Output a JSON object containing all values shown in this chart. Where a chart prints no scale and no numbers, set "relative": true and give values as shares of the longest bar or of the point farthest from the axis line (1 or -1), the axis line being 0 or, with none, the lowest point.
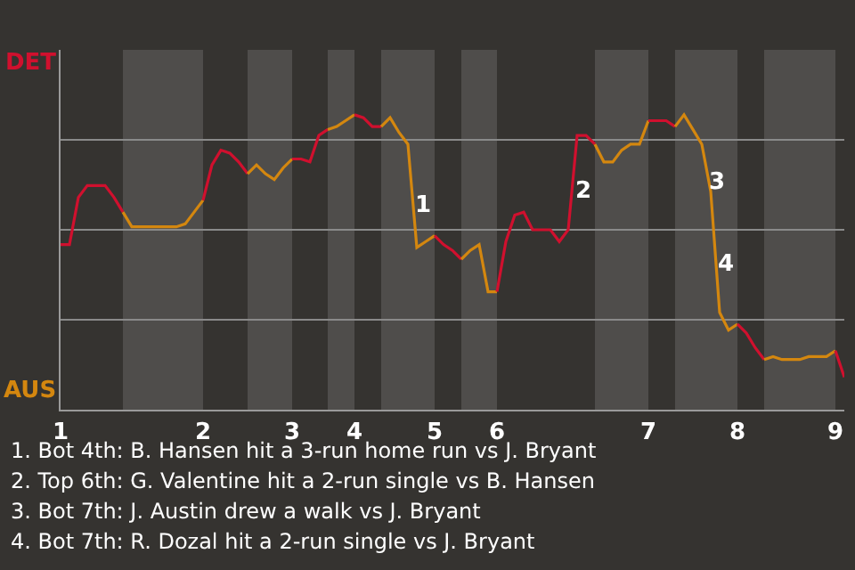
{
  "chart_data": {
    "type": "line",
    "relative": true,
    "categories": [
      "1",
      null,
      null,
      null,
      null,
      null,
      null,
      null,
      null,
      null,
      null,
      null,
      null,
      null,
      null,
      null,
      "2",
      null,
      null,
      null,
      null,
      null,
      null,
      null,
      null,
      null,
      "3",
      null,
      null,
      null,
      null,
      null,
      null,
      "4",
      null,
      null,
      null,
      null,
      null,
      null,
      null,
      null,
      "5",
      null,
      null,
      null,
      null,
      null,
      null,
      "6",
      null,
      null,
      null,
      null,
      null,
      null,
      null,
      null,
      null,
      null,
      null,
      null,
      null,
      null,
      null,
      null,
      "7",
      null,
      null,
      null,
      null,
      null,
      null,
      null,
      null,
      null,
      "8",
      null,
      null,
      null,
      null,
      null,
      null,
      null,
      null,
      null,
      null,
      "9",
      null
    ],
    "grid": "y",
    "marker": "none",
    "line_style": "solid",
    "series": [
      {
        "color": "#d0102e",
        "values": [
          0.56,
          0.56,
          0.72,
          0.76,
          0.76,
          0.76,
          0.72,
          0.67,
          null,
          null,
          null,
          null,
          null,
          null,
          null,
          null,
          null,
          null,
          null,
          null,
          null,
          null,
          null,
          null,
          null,
          null,
          null,
          null,
          null,
          null,
          null,
          null,
          null,
          null,
          null,
          null,
          null,
          null,
          null,
          null,
          null,
          null,
          null,
          null,
          null,
          null,
          null,
          null,
          null,
          null,
          null,
          null,
          null,
          null,
          null,
          null,
          null,
          null,
          null,
          null,
          null,
          null,
          null,
          null,
          null,
          null,
          null,
          null,
          null,
          null,
          null,
          null,
          null,
          null,
          null,
          null,
          null,
          null,
          null,
          null,
          null,
          null,
          null,
          null,
          null,
          null,
          null,
          null,
          null
        ]
      },
      {
        "color": "#d4870f",
        "values": [
          null,
          null,
          null,
          null,
          null,
          null,
          null,
          0.67,
          0.62,
          0.62,
          0.62,
          0.62,
          0.62,
          0.62,
          0.63,
          0.67,
          0.71,
          null,
          null,
          null,
          null,
          null,
          null,
          null,
          null,
          null,
          null,
          null,
          null,
          null,
          null,
          null,
          null,
          null,
          null,
          null,
          null,
          null,
          null,
          null,
          null,
          null,
          null,
          null,
          null,
          null,
          null,
          null,
          null,
          null,
          null,
          null,
          null,
          null,
          null,
          null,
          null,
          null,
          null,
          null,
          null,
          null,
          null,
          null,
          null,
          null,
          null,
          null,
          null,
          null,
          null,
          null,
          null,
          null,
          null,
          null,
          null,
          null,
          null,
          null,
          null,
          null,
          null,
          null,
          null,
          null,
          null,
          null,
          null
        ]
      },
      {
        "color": "#d0102e",
        "values": [
          null,
          null,
          null,
          null,
          null,
          null,
          null,
          null,
          null,
          null,
          null,
          null,
          null,
          null,
          null,
          null,
          0.71,
          0.83,
          0.88,
          0.87,
          0.84,
          0.8,
          null,
          null,
          null,
          null,
          null,
          null,
          null,
          null,
          null,
          null,
          null,
          null,
          null,
          null,
          null,
          null,
          null,
          null,
          null,
          null,
          null,
          null,
          null,
          null,
          null,
          null,
          null,
          null,
          null,
          null,
          null,
          null,
          null,
          null,
          null,
          null,
          null,
          null,
          null,
          null,
          null,
          null,
          null,
          null,
          null,
          null,
          null,
          null,
          null,
          null,
          null,
          null,
          null,
          null,
          null,
          null,
          null,
          null,
          null,
          null,
          null,
          null,
          null,
          null,
          null,
          null,
          null
        ]
      },
      {
        "color": "#d4870f",
        "values": [
          null,
          null,
          null,
          null,
          null,
          null,
          null,
          null,
          null,
          null,
          null,
          null,
          null,
          null,
          null,
          null,
          null,
          null,
          null,
          null,
          null,
          0.8,
          0.83,
          0.8,
          0.78,
          0.82,
          0.85,
          null,
          null,
          null,
          null,
          null,
          null,
          null,
          null,
          null,
          null,
          null,
          null,
          null,
          null,
          null,
          null,
          null,
          null,
          null,
          null,
          null,
          null,
          null,
          null,
          null,
          null,
          null,
          null,
          null,
          null,
          null,
          null,
          null,
          null,
          null,
          null,
          null,
          null,
          null,
          null,
          null,
          null,
          null,
          null,
          null,
          null,
          null,
          null,
          null,
          null,
          null,
          null,
          null,
          null,
          null,
          null,
          null,
          null,
          null,
          null,
          null,
          null
        ]
      },
      {
        "color": "#d0102e",
        "values": [
          null,
          null,
          null,
          null,
          null,
          null,
          null,
          null,
          null,
          null,
          null,
          null,
          null,
          null,
          null,
          null,
          null,
          null,
          null,
          null,
          null,
          null,
          null,
          null,
          null,
          null,
          0.85,
          0.85,
          0.84,
          0.93,
          0.95,
          null,
          null,
          null,
          null,
          null,
          null,
          null,
          null,
          null,
          null,
          null,
          null,
          null,
          null,
          null,
          null,
          null,
          null,
          null,
          null,
          null,
          null,
          null,
          null,
          null,
          null,
          null,
          null,
          null,
          null,
          null,
          null,
          null,
          null,
          null,
          null,
          null,
          null,
          null,
          null,
          null,
          null,
          null,
          null,
          null,
          null,
          null,
          null,
          null,
          null,
          null,
          null,
          null,
          null,
          null,
          null,
          null,
          null
        ]
      },
      {
        "color": "#d4870f",
        "values": [
          null,
          null,
          null,
          null,
          null,
          null,
          null,
          null,
          null,
          null,
          null,
          null,
          null,
          null,
          null,
          null,
          null,
          null,
          null,
          null,
          null,
          null,
          null,
          null,
          null,
          null,
          null,
          null,
          null,
          null,
          0.95,
          0.96,
          0.98,
          1,
          null,
          null,
          null,
          null,
          null,
          null,
          null,
          null,
          null,
          null,
          null,
          null,
          null,
          null,
          null,
          null,
          null,
          null,
          null,
          null,
          null,
          null,
          null,
          null,
          null,
          null,
          null,
          null,
          null,
          null,
          null,
          null,
          null,
          null,
          null,
          null,
          null,
          null,
          null,
          null,
          null,
          null,
          null,
          null,
          null,
          null,
          null,
          null,
          null,
          null,
          null,
          null,
          null,
          null,
          null
        ]
      },
      {
        "color": "#d0102e",
        "values": [
          null,
          null,
          null,
          null,
          null,
          null,
          null,
          null,
          null,
          null,
          null,
          null,
          null,
          null,
          null,
          null,
          null,
          null,
          null,
          null,
          null,
          null,
          null,
          null,
          null,
          null,
          null,
          null,
          null,
          null,
          null,
          null,
          null,
          1,
          0.99,
          0.96,
          0.96,
          null,
          null,
          null,
          null,
          null,
          null,
          null,
          null,
          null,
          null,
          null,
          null,
          null,
          null,
          null,
          null,
          null,
          null,
          null,
          null,
          null,
          null,
          null,
          null,
          null,
          null,
          null,
          null,
          null,
          null,
          null,
          null,
          null,
          null,
          null,
          null,
          null,
          null,
          null,
          null,
          null,
          null,
          null,
          null,
          null,
          null,
          null,
          null,
          null,
          null,
          null,
          null
        ]
      },
      {
        "color": "#d4870f",
        "values": [
          null,
          null,
          null,
          null,
          null,
          null,
          null,
          null,
          null,
          null,
          null,
          null,
          null,
          null,
          null,
          null,
          null,
          null,
          null,
          null,
          null,
          null,
          null,
          null,
          null,
          null,
          null,
          null,
          null,
          null,
          null,
          null,
          null,
          null,
          null,
          null,
          0.96,
          0.99,
          0.94,
          0.9,
          0.55,
          0.57,
          0.59,
          null,
          null,
          null,
          null,
          null,
          null,
          null,
          null,
          null,
          null,
          null,
          null,
          null,
          null,
          null,
          null,
          null,
          null,
          null,
          null,
          null,
          null,
          null,
          null,
          null,
          null,
          null,
          null,
          null,
          null,
          null,
          null,
          null,
          null,
          null,
          null,
          null,
          null,
          null,
          null,
          null,
          null,
          null,
          null,
          null,
          null
        ]
      },
      {
        "color": "#d0102e",
        "values": [
          null,
          null,
          null,
          null,
          null,
          null,
          null,
          null,
          null,
          null,
          null,
          null,
          null,
          null,
          null,
          null,
          null,
          null,
          null,
          null,
          null,
          null,
          null,
          null,
          null,
          null,
          null,
          null,
          null,
          null,
          null,
          null,
          null,
          null,
          null,
          null,
          null,
          null,
          null,
          null,
          null,
          null,
          0.59,
          0.56,
          0.54,
          0.51,
          null,
          null,
          null,
          null,
          null,
          null,
          null,
          null,
          null,
          null,
          null,
          null,
          null,
          null,
          null,
          null,
          null,
          null,
          null,
          null,
          null,
          null,
          null,
          null,
          null,
          null,
          null,
          null,
          null,
          null,
          null,
          null,
          null,
          null,
          null,
          null,
          null,
          null,
          null,
          null,
          null,
          null,
          null
        ]
      },
      {
        "color": "#d4870f",
        "values": [
          null,
          null,
          null,
          null,
          null,
          null,
          null,
          null,
          null,
          null,
          null,
          null,
          null,
          null,
          null,
          null,
          null,
          null,
          null,
          null,
          null,
          null,
          null,
          null,
          null,
          null,
          null,
          null,
          null,
          null,
          null,
          null,
          null,
          null,
          null,
          null,
          null,
          null,
          null,
          null,
          null,
          null,
          null,
          null,
          null,
          0.51,
          0.54,
          0.56,
          0.4,
          0.4,
          null,
          null,
          null,
          null,
          null,
          null,
          null,
          null,
          null,
          null,
          null,
          null,
          null,
          null,
          null,
          null,
          null,
          null,
          null,
          null,
          null,
          null,
          null,
          null,
          null,
          null,
          null,
          null,
          null,
          null,
          null,
          null,
          null,
          null,
          null,
          null,
          null,
          null,
          null
        ]
      },
      {
        "color": "#d0102e",
        "values": [
          null,
          null,
          null,
          null,
          null,
          null,
          null,
          null,
          null,
          null,
          null,
          null,
          null,
          null,
          null,
          null,
          null,
          null,
          null,
          null,
          null,
          null,
          null,
          null,
          null,
          null,
          null,
          null,
          null,
          null,
          null,
          null,
          null,
          null,
          null,
          null,
          null,
          null,
          null,
          null,
          null,
          null,
          null,
          null,
          null,
          null,
          null,
          null,
          null,
          0.4,
          0.57,
          0.66,
          0.67,
          0.61,
          0.61,
          0.61,
          0.57,
          0.61,
          0.93,
          0.93,
          0.9,
          null,
          null,
          null,
          null,
          null,
          null,
          null,
          null,
          null,
          null,
          null,
          null,
          null,
          null,
          null,
          null,
          null,
          null,
          null,
          null,
          null,
          null,
          null,
          null,
          null,
          null,
          null,
          null
        ]
      },
      {
        "color": "#d4870f",
        "values": [
          null,
          null,
          null,
          null,
          null,
          null,
          null,
          null,
          null,
          null,
          null,
          null,
          null,
          null,
          null,
          null,
          null,
          null,
          null,
          null,
          null,
          null,
          null,
          null,
          null,
          null,
          null,
          null,
          null,
          null,
          null,
          null,
          null,
          null,
          null,
          null,
          null,
          null,
          null,
          null,
          null,
          null,
          null,
          null,
          null,
          null,
          null,
          null,
          null,
          null,
          null,
          null,
          null,
          null,
          null,
          null,
          null,
          null,
          null,
          null,
          0.9,
          0.84,
          0.84,
          0.88,
          0.9,
          0.9,
          0.98,
          null,
          null,
          null,
          null,
          null,
          null,
          null,
          null,
          null,
          null,
          null,
          null,
          null,
          null,
          null,
          null,
          null,
          null,
          null,
          null,
          null,
          null
        ]
      },
      {
        "color": "#d0102e",
        "values": [
          null,
          null,
          null,
          null,
          null,
          null,
          null,
          null,
          null,
          null,
          null,
          null,
          null,
          null,
          null,
          null,
          null,
          null,
          null,
          null,
          null,
          null,
          null,
          null,
          null,
          null,
          null,
          null,
          null,
          null,
          null,
          null,
          null,
          null,
          null,
          null,
          null,
          null,
          null,
          null,
          null,
          null,
          null,
          null,
          null,
          null,
          null,
          null,
          null,
          null,
          null,
          null,
          null,
          null,
          null,
          null,
          null,
          null,
          null,
          null,
          null,
          null,
          null,
          null,
          null,
          null,
          0.98,
          0.98,
          0.98,
          0.96,
          null,
          null,
          null,
          null,
          null,
          null,
          null,
          null,
          null,
          null,
          null,
          null,
          null,
          null,
          null,
          null,
          null,
          null,
          null
        ]
      },
      {
        "color": "#d4870f",
        "values": [
          null,
          null,
          null,
          null,
          null,
          null,
          null,
          null,
          null,
          null,
          null,
          null,
          null,
          null,
          null,
          null,
          null,
          null,
          null,
          null,
          null,
          null,
          null,
          null,
          null,
          null,
          null,
          null,
          null,
          null,
          null,
          null,
          null,
          null,
          null,
          null,
          null,
          null,
          null,
          null,
          null,
          null,
          null,
          null,
          null,
          null,
          null,
          null,
          null,
          null,
          null,
          null,
          null,
          null,
          null,
          null,
          null,
          null,
          null,
          null,
          null,
          null,
          null,
          null,
          null,
          null,
          null,
          null,
          null,
          0.96,
          1,
          0.95,
          0.9,
          0.74,
          0.33,
          0.27,
          0.29,
          null,
          null,
          null,
          null,
          null,
          null,
          null,
          null,
          null,
          null,
          null,
          null
        ]
      },
      {
        "color": "#d0102e",
        "values": [
          null,
          null,
          null,
          null,
          null,
          null,
          null,
          null,
          null,
          null,
          null,
          null,
          null,
          null,
          null,
          null,
          null,
          null,
          null,
          null,
          null,
          null,
          null,
          null,
          null,
          null,
          null,
          null,
          null,
          null,
          null,
          null,
          null,
          null,
          null,
          null,
          null,
          null,
          null,
          null,
          null,
          null,
          null,
          null,
          null,
          null,
          null,
          null,
          null,
          null,
          null,
          null,
          null,
          null,
          null,
          null,
          null,
          null,
          null,
          null,
          null,
          null,
          null,
          null,
          null,
          null,
          null,
          null,
          null,
          null,
          null,
          null,
          null,
          null,
          null,
          null,
          0.29,
          0.26,
          0.21,
          0.17,
          null,
          null,
          null,
          null,
          null,
          null,
          null,
          null,
          null
        ]
      },
      {
        "color": "#d4870f",
        "values": [
          null,
          null,
          null,
          null,
          null,
          null,
          null,
          null,
          null,
          null,
          null,
          null,
          null,
          null,
          null,
          null,
          null,
          null,
          null,
          null,
          null,
          null,
          null,
          null,
          null,
          null,
          null,
          null,
          null,
          null,
          null,
          null,
          null,
          null,
          null,
          null,
          null,
          null,
          null,
          null,
          null,
          null,
          null,
          null,
          null,
          null,
          null,
          null,
          null,
          null,
          null,
          null,
          null,
          null,
          null,
          null,
          null,
          null,
          null,
          null,
          null,
          null,
          null,
          null,
          null,
          null,
          null,
          null,
          null,
          null,
          null,
          null,
          null,
          null,
          null,
          null,
          null,
          null,
          null,
          0.17,
          0.18,
          0.17,
          0.17,
          0.17,
          0.18,
          0.18,
          0.18,
          0.2,
          null
        ]
      },
      {
        "color": "#d0102e",
        "values": [
          null,
          null,
          null,
          null,
          null,
          null,
          null,
          null,
          null,
          null,
          null,
          null,
          null,
          null,
          null,
          null,
          null,
          null,
          null,
          null,
          null,
          null,
          null,
          null,
          null,
          null,
          null,
          null,
          null,
          null,
          null,
          null,
          null,
          null,
          null,
          null,
          null,
          null,
          null,
          null,
          null,
          null,
          null,
          null,
          null,
          null,
          null,
          null,
          null,
          null,
          null,
          null,
          null,
          null,
          null,
          null,
          null,
          null,
          null,
          null,
          null,
          null,
          null,
          null,
          null,
          null,
          null,
          null,
          null,
          null,
          null,
          null,
          null,
          null,
          null,
          null,
          null,
          null,
          null,
          null,
          null,
          null,
          null,
          null,
          null,
          null,
          null,
          0.2,
          0.11
        ]
      }
    ],
    "annotations": [
      "DET",
      "AUS",
      "1",
      "2",
      "3",
      "4",
      "1. Bot 4th: B. Hansen hit a 3-run home run vs J. Bryant",
      "2. Top 6th: G. Valentine hit a 2-run single vs B. Hansen",
      "3. Bot 7th: J. Austin drew a walk vs J. Bryant",
      "4. Bot 7th: R. Dozal hit a 2-run single vs J. Bryant"
    ]
  }
}
